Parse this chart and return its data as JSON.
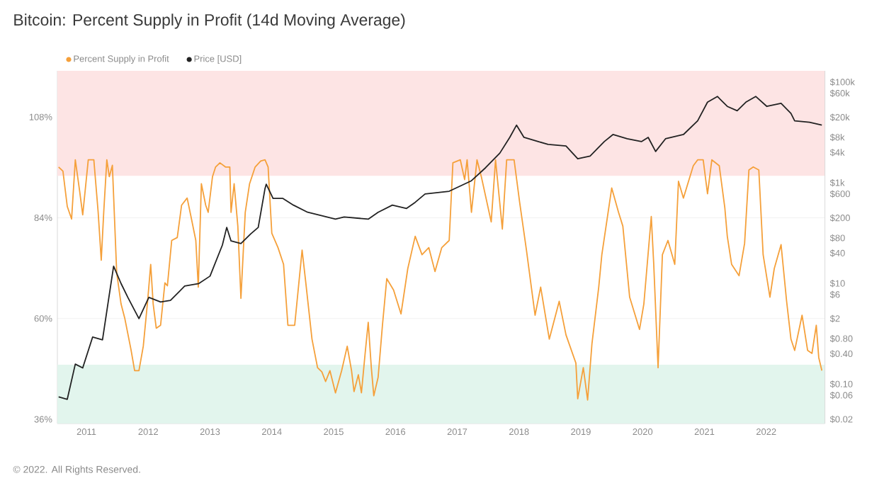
{
  "chart_data": {
    "type": "line",
    "title": "Bitcoin: Percent Supply in Profit (14d Moving Average)",
    "annotations": [
      "© 2022. All Rights Reserved."
    ],
    "xlim": [
      2010.53,
      2022.95
    ],
    "xticks": [
      2011,
      2012,
      2013,
      2014,
      2015,
      2016,
      2017,
      2018,
      2019,
      2020,
      2021,
      2022
    ],
    "ylim": [
      35,
      119
    ],
    "yticks": [
      {
        "value": 36,
        "label": "36%"
      },
      {
        "value": 60,
        "label": "60%"
      },
      {
        "value": 84,
        "label": "84%"
      },
      {
        "value": 108,
        "label": "108%"
      }
    ],
    "y2lim": [
      0.0165,
      168000
    ],
    "y2ticks": [
      {
        "value": 0.02,
        "label": "$0.02"
      },
      {
        "value": 0.06,
        "label": "$0.06"
      },
      {
        "value": 0.1,
        "label": "$0.10"
      },
      {
        "value": 0.4,
        "label": "$0.40"
      },
      {
        "value": 0.8,
        "label": "$0.80"
      },
      {
        "value": 2,
        "label": "$2"
      },
      {
        "value": 6,
        "label": "$6"
      },
      {
        "value": 10,
        "label": "$10"
      },
      {
        "value": 40,
        "label": "$40"
      },
      {
        "value": 80,
        "label": "$80"
      },
      {
        "value": 200,
        "label": "$200"
      },
      {
        "value": 600,
        "label": "$600"
      },
      {
        "value": 1000,
        "label": "$1k"
      },
      {
        "value": 4000,
        "label": "$4k"
      },
      {
        "value": 8000,
        "label": "$8k"
      },
      {
        "value": 20000,
        "label": "$20k"
      },
      {
        "value": 60000,
        "label": "$60k"
      },
      {
        "value": 100000,
        "label": "$100k"
      }
    ],
    "log": "y2",
    "grid": "y",
    "legend": "top left",
    "bands": [
      {
        "axis": "y",
        "from": 94,
        "to": 119,
        "color": "#fde4e4"
      },
      {
        "axis": "y",
        "from": 35,
        "to": 49,
        "color": "#e2f5ed"
      }
    ],
    "series": [
      {
        "name": "Percent Supply in Profit",
        "color": "#f5a03a",
        "x": [
          2010.55,
          2010.62,
          2010.69,
          2010.76,
          2010.82,
          2010.89,
          2010.94,
          2011.03,
          2011.12,
          2011.19,
          2011.24,
          2011.28,
          2011.33,
          2011.37,
          2011.42,
          2011.49,
          2011.56,
          2011.62,
          2011.72,
          2011.78,
          2011.85,
          2011.92,
          2011.99,
          2012.04,
          2012.08,
          2012.13,
          2012.2,
          2012.27,
          2012.31,
          2012.38,
          2012.47,
          2012.54,
          2012.63,
          2012.7,
          2012.77,
          2012.81,
          2012.86,
          2012.93,
          2012.97,
          2013.04,
          2013.09,
          2013.16,
          2013.25,
          2013.32,
          2013.34,
          2013.39,
          2013.45,
          2013.5,
          2013.57,
          2013.64,
          2013.73,
          2013.82,
          2013.89,
          2013.94,
          2014.0,
          2014.1,
          2014.19,
          2014.26,
          2014.37,
          2014.49,
          2014.55,
          2014.65,
          2014.74,
          2014.81,
          2014.87,
          2014.94,
          2015.03,
          2015.13,
          2015.22,
          2015.29,
          2015.33,
          2015.4,
          2015.45,
          2015.51,
          2015.56,
          2015.61,
          2015.65,
          2015.72,
          2015.79,
          2015.86,
          2015.97,
          2016.09,
          2016.2,
          2016.32,
          2016.43,
          2016.54,
          2016.64,
          2016.75,
          2016.87,
          2016.93,
          2017.05,
          2017.12,
          2017.16,
          2017.23,
          2017.32,
          2017.39,
          2017.55,
          2017.62,
          2017.73,
          2017.8,
          2017.92,
          2018.01,
          2018.12,
          2018.19,
          2018.26,
          2018.35,
          2018.49,
          2018.65,
          2018.76,
          2018.92,
          2018.95,
          2019.04,
          2019.11,
          2019.18,
          2019.29,
          2019.34,
          2019.5,
          2019.61,
          2019.68,
          2019.79,
          2019.95,
          2020.02,
          2020.14,
          2020.18,
          2020.25,
          2020.32,
          2020.41,
          2020.52,
          2020.58,
          2020.66,
          2020.82,
          2020.89,
          2020.98,
          2021.05,
          2021.12,
          2021.24,
          2021.33,
          2021.37,
          2021.44,
          2021.56,
          2021.65,
          2021.72,
          2021.79,
          2021.88,
          2021.95,
          2022.06,
          2022.13,
          2022.24,
          2022.33,
          2022.4,
          2022.46,
          2022.58,
          2022.67,
          2022.74,
          2022.81,
          2022.85,
          2022.9
        ],
        "values": [
          96.1,
          95.1,
          86.7,
          83.7,
          97.8,
          90.4,
          84.7,
          97.8,
          97.8,
          85.3,
          73.9,
          85.3,
          97.8,
          93.8,
          96.5,
          70.9,
          63.5,
          60.1,
          52.7,
          47.6,
          47.6,
          53.4,
          64.1,
          72.9,
          63.5,
          57.7,
          58.4,
          68.5,
          67.8,
          78.6,
          79.3,
          87.0,
          88.7,
          83.7,
          78.6,
          67.5,
          92.1,
          87.0,
          85.3,
          93.8,
          96.1,
          97.1,
          96.1,
          96.1,
          85.3,
          92.1,
          82.0,
          64.8,
          85.3,
          92.1,
          96.1,
          97.5,
          97.8,
          96.1,
          80.3,
          76.9,
          72.9,
          58.4,
          58.4,
          76.3,
          68.5,
          55.1,
          48.3,
          47.3,
          45.0,
          47.6,
          42.3,
          47.6,
          53.4,
          47.6,
          42.6,
          46.6,
          42.3,
          51.7,
          59.1,
          48.3,
          41.6,
          46.0,
          58.4,
          69.5,
          66.8,
          61.1,
          71.9,
          79.6,
          75.2,
          76.9,
          71.2,
          76.9,
          78.6,
          97.1,
          97.8,
          93.1,
          97.8,
          85.3,
          97.8,
          93.8,
          83.0,
          97.8,
          81.3,
          97.8,
          97.8,
          87.7,
          76.3,
          68.5,
          60.8,
          67.5,
          55.1,
          64.1,
          56.1,
          49.4,
          40.9,
          48.3,
          40.6,
          54.0,
          67.5,
          75.2,
          91.1,
          85.3,
          82.0,
          65.1,
          57.4,
          63.5,
          84.3,
          72.9,
          48.3,
          75.2,
          78.6,
          72.9,
          92.7,
          88.7,
          96.4,
          97.8,
          97.8,
          89.7,
          97.8,
          96.4,
          86.4,
          79.6,
          72.9,
          70.2,
          77.9,
          95.4,
          96.1,
          95.4,
          75.2,
          65.1,
          71.9,
          77.6,
          64.1,
          55.1,
          52.4,
          60.8,
          52.4,
          51.7,
          58.4,
          50.7,
          47.6
        ]
      },
      {
        "name": "Price [USD]",
        "color": "#222222",
        "axis": "y2",
        "x": [
          2010.55,
          2010.69,
          2010.82,
          2010.94,
          2011.1,
          2011.26,
          2011.37,
          2011.44,
          2011.56,
          2011.67,
          2011.85,
          2012.01,
          2012.2,
          2012.36,
          2012.59,
          2012.82,
          2013.0,
          2013.2,
          2013.27,
          2013.34,
          2013.5,
          2013.66,
          2013.78,
          2013.89,
          2013.91,
          2014.02,
          2014.18,
          2014.35,
          2014.58,
          2015.03,
          2015.17,
          2015.56,
          2015.72,
          2015.95,
          2016.18,
          2016.32,
          2016.48,
          2016.87,
          2017.23,
          2017.46,
          2017.69,
          2017.85,
          2017.96,
          2018.08,
          2018.31,
          2018.47,
          2018.76,
          2018.95,
          2019.15,
          2019.38,
          2019.52,
          2019.75,
          2019.98,
          2020.09,
          2020.21,
          2020.37,
          2020.66,
          2020.89,
          2021.05,
          2021.21,
          2021.37,
          2021.53,
          2021.67,
          2021.83,
          2022.01,
          2022.24,
          2022.4,
          2022.46,
          2022.7,
          2022.9
        ],
        "values": [
          0.056,
          0.05,
          0.25,
          0.21,
          0.86,
          0.76,
          6.0,
          22,
          10,
          5.3,
          2.0,
          5.3,
          4.3,
          4.6,
          8.9,
          10,
          14,
          58,
          130,
          70,
          62,
          97,
          130,
          770,
          940,
          490,
          490,
          360,
          260,
          190,
          210,
          190,
          260,
          360,
          310,
          410,
          600,
          680,
          1100,
          2000,
          3900,
          8000,
          14000,
          8000,
          6600,
          5800,
          5400,
          3000,
          3400,
          6600,
          9100,
          7500,
          6600,
          8000,
          4200,
          7500,
          9100,
          17000,
          40000,
          52000,
          33000,
          27000,
          40000,
          52000,
          33000,
          38000,
          24000,
          17000,
          16000,
          14000
        ]
      }
    ]
  }
}
